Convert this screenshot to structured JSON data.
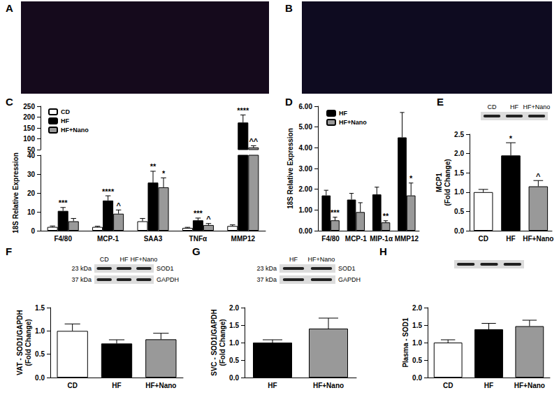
{
  "chart_data": [
    {
      "type": "image",
      "title": "A"
    },
    {
      "type": "image",
      "title": "B"
    },
    {
      "type": "bar",
      "title": "C",
      "ylabel": "18S Relative Expression",
      "categories": [
        "F4/80",
        "MCP-1",
        "SAA3",
        "TNFα",
        "MMP12"
      ],
      "series": [
        {
          "name": "CD",
          "color": "#ffffff",
          "values": [
            2,
            2,
            5,
            1.5,
            2.5
          ],
          "errors": [
            0.5,
            0.4,
            1.5,
            0.3,
            0.6
          ]
        },
        {
          "name": "HF",
          "color": "#000000",
          "values": [
            10.5,
            16,
            25.5,
            5.5,
            175
          ],
          "errors": [
            1.8,
            2.5,
            6,
            1.2,
            35
          ],
          "annotations": [
            "***",
            "****",
            "**",
            "***",
            "****"
          ]
        },
        {
          "name": "HF+Nano",
          "color": "#999999",
          "values": [
            5,
            9,
            23,
            3,
            60
          ],
          "errors": [
            1.5,
            2,
            5,
            0.8,
            8
          ],
          "annotations": [
            null,
            "^",
            "*",
            "^",
            "^^"
          ]
        }
      ],
      "ylim": [
        0,
        250
      ],
      "yticks": [
        0,
        10,
        20,
        30,
        40,
        50,
        100,
        150,
        200,
        250
      ],
      "axis_break": [
        40,
        50
      ],
      "legend": "upper left",
      "grid": false
    },
    {
      "type": "bar",
      "title": "D",
      "ylabel": "18S Relative Expression",
      "categories": [
        "F4/80",
        "MCP-1",
        "MIP-1α",
        "MMP12"
      ],
      "series": [
        {
          "name": "HF",
          "color": "#000000",
          "values": [
            1.7,
            1.5,
            1.75,
            4.5
          ],
          "errors": [
            0.25,
            0.3,
            0.35,
            1.2
          ]
        },
        {
          "name": "HF+Nano",
          "color": "#999999",
          "values": [
            0.5,
            0.9,
            0.4,
            1.7
          ],
          "errors": [
            0.15,
            0.45,
            0.08,
            0.6
          ],
          "annotations": [
            "***",
            null,
            "**",
            "*"
          ]
        }
      ],
      "ylim": [
        0,
        6
      ],
      "yticks": [
        {
          "value": 0,
          "label": "0.00"
        },
        {
          "value": 1,
          "label": "1.00"
        },
        {
          "value": 2,
          "label": "2.00"
        },
        {
          "value": 3,
          "label": "3.00"
        },
        {
          "value": 4,
          "label": "4.00"
        },
        {
          "value": 5,
          "label": "5.00"
        },
        {
          "value": 6,
          "label": "6.00"
        }
      ],
      "legend": "upper left",
      "grid": false
    },
    {
      "type": "bar",
      "title": "E",
      "ylabel": [
        "MCP1",
        "(Fold Change)"
      ],
      "categories": [
        "CD",
        "HF",
        "HF+Nano"
      ],
      "values": [
        1.0,
        1.95,
        1.15
      ],
      "errors": [
        0.07,
        0.33,
        0.15
      ],
      "annotations": [
        null,
        "*",
        "^"
      ],
      "colors": [
        "#ffffff",
        "#000000",
        "#999999"
      ],
      "blot": {
        "lanes": [
          "CD",
          "HF",
          "HF+Nano"
        ],
        "rows": 1
      },
      "ylim": [
        0,
        2.5
      ],
      "yticks": [
        {
          "value": 0,
          "label": "0.0"
        },
        0.5,
        {
          "value": 1,
          "label": "1.0"
        },
        1.5,
        {
          "value": 2,
          "label": "2.0"
        },
        2.5
      ],
      "grid": false
    },
    {
      "type": "bar",
      "title": "F",
      "ylabel": [
        "VAT - SOD1/GAPDH",
        "(Fold Change)"
      ],
      "categories": [
        "CD",
        "HF",
        "HF+Nano"
      ],
      "values": [
        1.0,
        0.73,
        0.82
      ],
      "errors": [
        0.15,
        0.08,
        0.13
      ],
      "colors": [
        "#ffffff",
        "#000000",
        "#999999"
      ],
      "blot": {
        "lanes": [
          "CD",
          "HF",
          "HF+Nano"
        ],
        "rows": [
          {
            "size": "23 kDa",
            "name": "SOD1"
          },
          {
            "size": "37 kDa",
            "name": "GAPDH"
          }
        ]
      },
      "ylim": [
        0,
        1.5
      ],
      "yticks": [
        {
          "value": 0,
          "label": "0.0"
        },
        0.5,
        {
          "value": 1,
          "label": "1.0"
        },
        1.5
      ],
      "grid": false
    },
    {
      "type": "bar",
      "title": "G",
      "ylabel": [
        "SVC - SOD1/GAPDH",
        "(Fold Change)"
      ],
      "categories": [
        "HF",
        "HF+Nano"
      ],
      "values": [
        1.0,
        1.4
      ],
      "errors": [
        0.08,
        0.3
      ],
      "colors": [
        "#000000",
        "#999999"
      ],
      "blot": {
        "lanes": [
          "HF",
          "HF+Nano"
        ],
        "rows": [
          {
            "size": "23 kDa",
            "name": "SOD1"
          },
          {
            "size": "37 kDa",
            "name": "GAPDH"
          }
        ]
      },
      "ylim": [
        0,
        2
      ],
      "yticks": [
        {
          "value": 0,
          "label": "0.0"
        },
        0.5,
        {
          "value": 1,
          "label": "1.0"
        },
        1.5,
        {
          "value": 2,
          "label": "2.0"
        }
      ],
      "grid": false
    },
    {
      "type": "bar",
      "title": "H",
      "ylabel": "Plasma - SOD1",
      "categories": [
        "CD",
        "HF",
        "HF+Nano"
      ],
      "values": [
        1.0,
        1.38,
        1.47
      ],
      "errors": [
        0.08,
        0.17,
        0.17
      ],
      "colors": [
        "#ffffff",
        "#000000",
        "#999999"
      ],
      "blot": {
        "lanes": 3,
        "rows": 1
      },
      "ylim": [
        0,
        2
      ],
      "yticks": [
        {
          "value": 0,
          "label": "0.0"
        },
        0.5,
        {
          "value": 1,
          "label": "1.0"
        },
        1.5,
        {
          "value": 2,
          "label": "2.0"
        }
      ],
      "grid": false
    }
  ]
}
